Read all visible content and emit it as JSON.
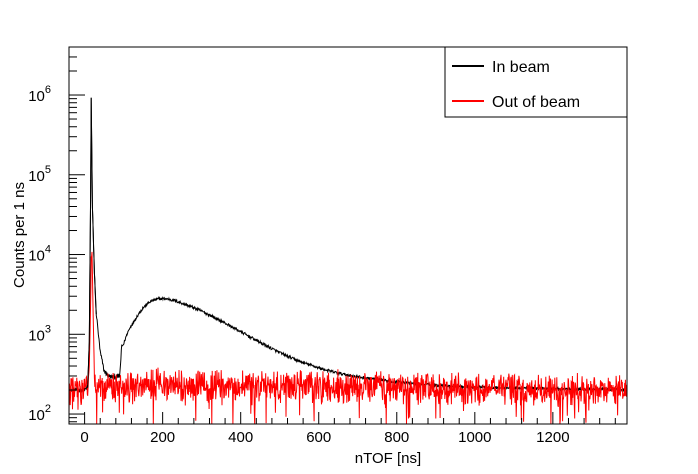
{
  "chart_data": {
    "type": "line",
    "xlabel": "nTOF [ns]",
    "ylabel": "Counts per 1 ns",
    "xlim": [
      -40,
      1390
    ],
    "ylim": [
      75,
      4000000
    ],
    "yscale": "log",
    "x_ticks": [
      0,
      200,
      400,
      600,
      800,
      1000,
      1200
    ],
    "x_tick_labels": [
      "0",
      "200",
      "400",
      "600",
      "800",
      "1000",
      "1200"
    ],
    "y_ticks": [
      {
        "value": 100,
        "base": "10",
        "exp": "2"
      },
      {
        "value": 1000,
        "base": "10",
        "exp": "3"
      },
      {
        "value": 10000,
        "base": "10",
        "exp": "4"
      },
      {
        "value": 100000,
        "base": "10",
        "exp": "5"
      },
      {
        "value": 1000000,
        "base": "10",
        "exp": "6"
      }
    ],
    "grid": false,
    "legend_position": "top-right",
    "series": [
      {
        "name": "In beam",
        "color": "#000000",
        "x": [
          -40,
          0,
          8,
          12,
          15,
          17,
          20,
          25,
          30,
          40,
          50,
          60,
          70,
          80,
          90,
          95,
          100,
          105,
          110,
          120,
          130,
          140,
          150,
          160,
          170,
          180,
          190,
          200,
          210,
          220,
          230,
          240,
          250,
          260,
          280,
          300,
          320,
          340,
          360,
          380,
          400,
          420,
          440,
          460,
          480,
          500,
          520,
          540,
          560,
          580,
          600,
          620,
          640,
          660,
          680,
          700,
          720,
          740,
          760,
          780,
          800,
          820,
          840,
          860,
          880,
          900,
          920,
          940,
          960,
          980,
          1000,
          1050,
          1100,
          1150,
          1200,
          1250,
          1300,
          1350,
          1390
        ],
        "values": [
          200,
          200,
          220,
          800,
          40000,
          900000,
          40000,
          6000,
          1800,
          600,
          350,
          300,
          290,
          290,
          300,
          700,
          750,
          900,
          1050,
          1300,
          1550,
          1850,
          2150,
          2400,
          2600,
          2700,
          2780,
          2800,
          2780,
          2720,
          2650,
          2550,
          2450,
          2350,
          2150,
          1950,
          1750,
          1550,
          1380,
          1220,
          1080,
          950,
          840,
          740,
          660,
          590,
          530,
          480,
          440,
          410,
          380,
          355,
          335,
          318,
          305,
          293,
          283,
          274,
          266,
          259,
          253,
          247,
          242,
          238,
          234,
          230,
          227,
          224,
          222,
          220,
          218,
          215,
          212,
          210,
          208,
          206,
          205,
          204,
          203
        ]
      },
      {
        "name": "Out of beam",
        "color": "#ff0000",
        "x": [
          -40,
          0,
          8,
          12,
          15,
          17,
          19,
          21,
          25,
          30,
          40,
          60,
          100,
          200,
          300,
          400,
          500,
          600,
          700,
          800,
          900,
          1000,
          1100,
          1200,
          1300,
          1390
        ],
        "values": [
          200,
          200,
          200,
          400,
          2000,
          9000,
          11000,
          3000,
          300,
          200,
          210,
          210,
          220,
          230,
          230,
          230,
          225,
          225,
          220,
          215,
          210,
          205,
          205,
          200,
          200,
          195
        ],
        "noise": "high-frequency fluctuation about the mean between roughly 100 and 400 counts"
      }
    ],
    "legend": [
      {
        "label": "In beam",
        "color": "#000000"
      },
      {
        "label": "Out of beam",
        "color": "#ff0000"
      }
    ]
  }
}
